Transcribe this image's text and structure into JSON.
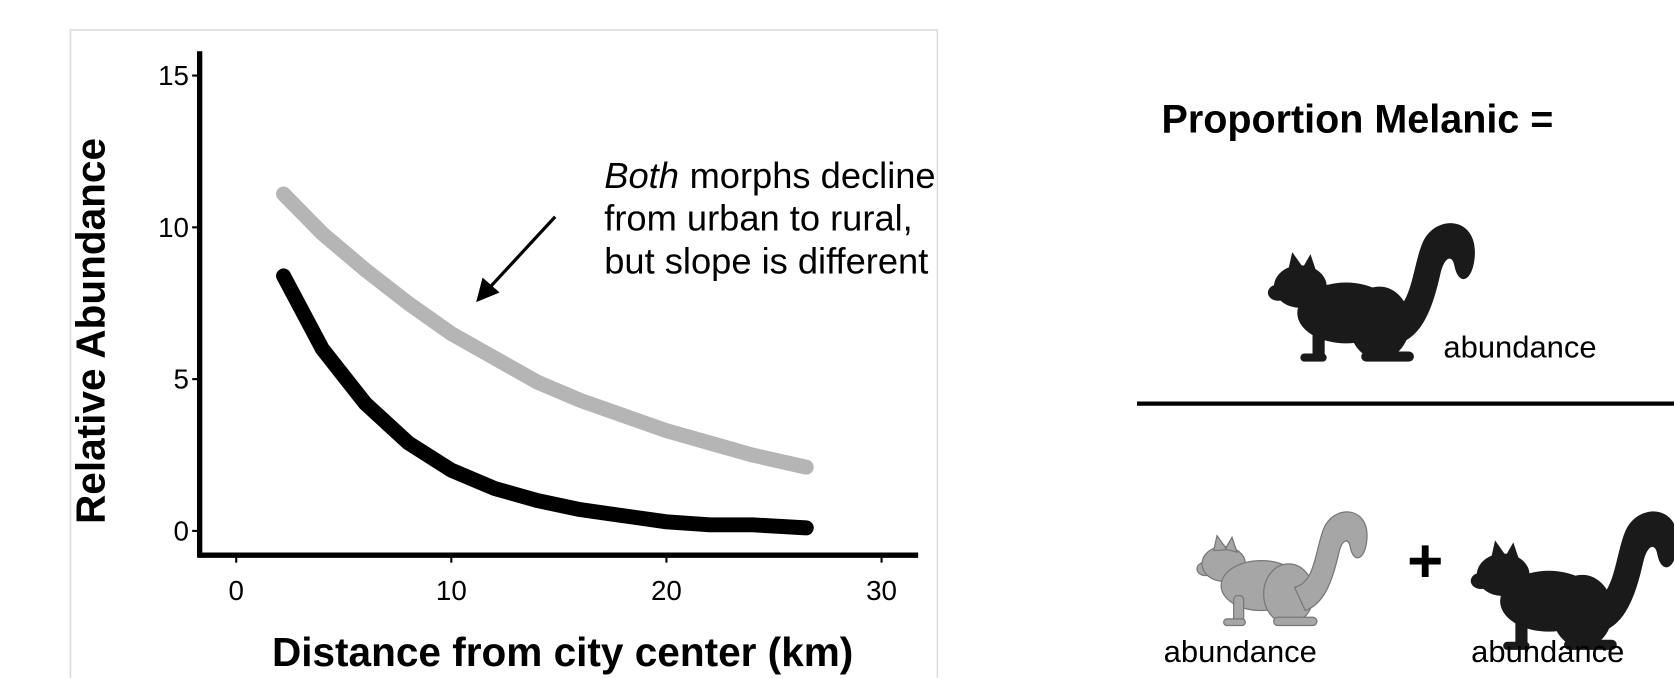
{
  "chart_data": {
    "type": "line",
    "x_label": "Distance from city center (km)",
    "y_label": "Relative Abundance",
    "x": [
      2.2,
      4,
      6,
      8,
      10,
      12,
      14,
      16,
      18,
      20,
      22,
      24,
      26.5
    ],
    "series": [
      {
        "color": "#b5b5b5",
        "values": [
          11.1,
          9.8,
          8.6,
          7.5,
          6.5,
          5.7,
          4.9,
          4.3,
          3.8,
          3.3,
          2.9,
          2.5,
          2.1
        ]
      },
      {
        "color": "#000000",
        "values": [
          8.4,
          6.0,
          4.2,
          2.9,
          2.0,
          1.4,
          1.0,
          0.7,
          0.5,
          0.3,
          0.2,
          0.2,
          0.1
        ]
      }
    ],
    "xlim": [
      -1.7,
      31.7
    ],
    "ylim": [
      -0.8,
      15.8
    ],
    "xticks": [
      0,
      10,
      20,
      30
    ],
    "yticks": [
      0,
      5,
      10,
      15
    ],
    "annotation": {
      "italic": "Both",
      "lines": [
        "morphs decline",
        "from urban to rural,",
        "but slope is different"
      ]
    }
  },
  "diagram": {
    "title": "Proportion Melanic =",
    "numerator_label": "abundance",
    "left_label": "abundance",
    "operator": "+",
    "right_label": "abundance"
  }
}
